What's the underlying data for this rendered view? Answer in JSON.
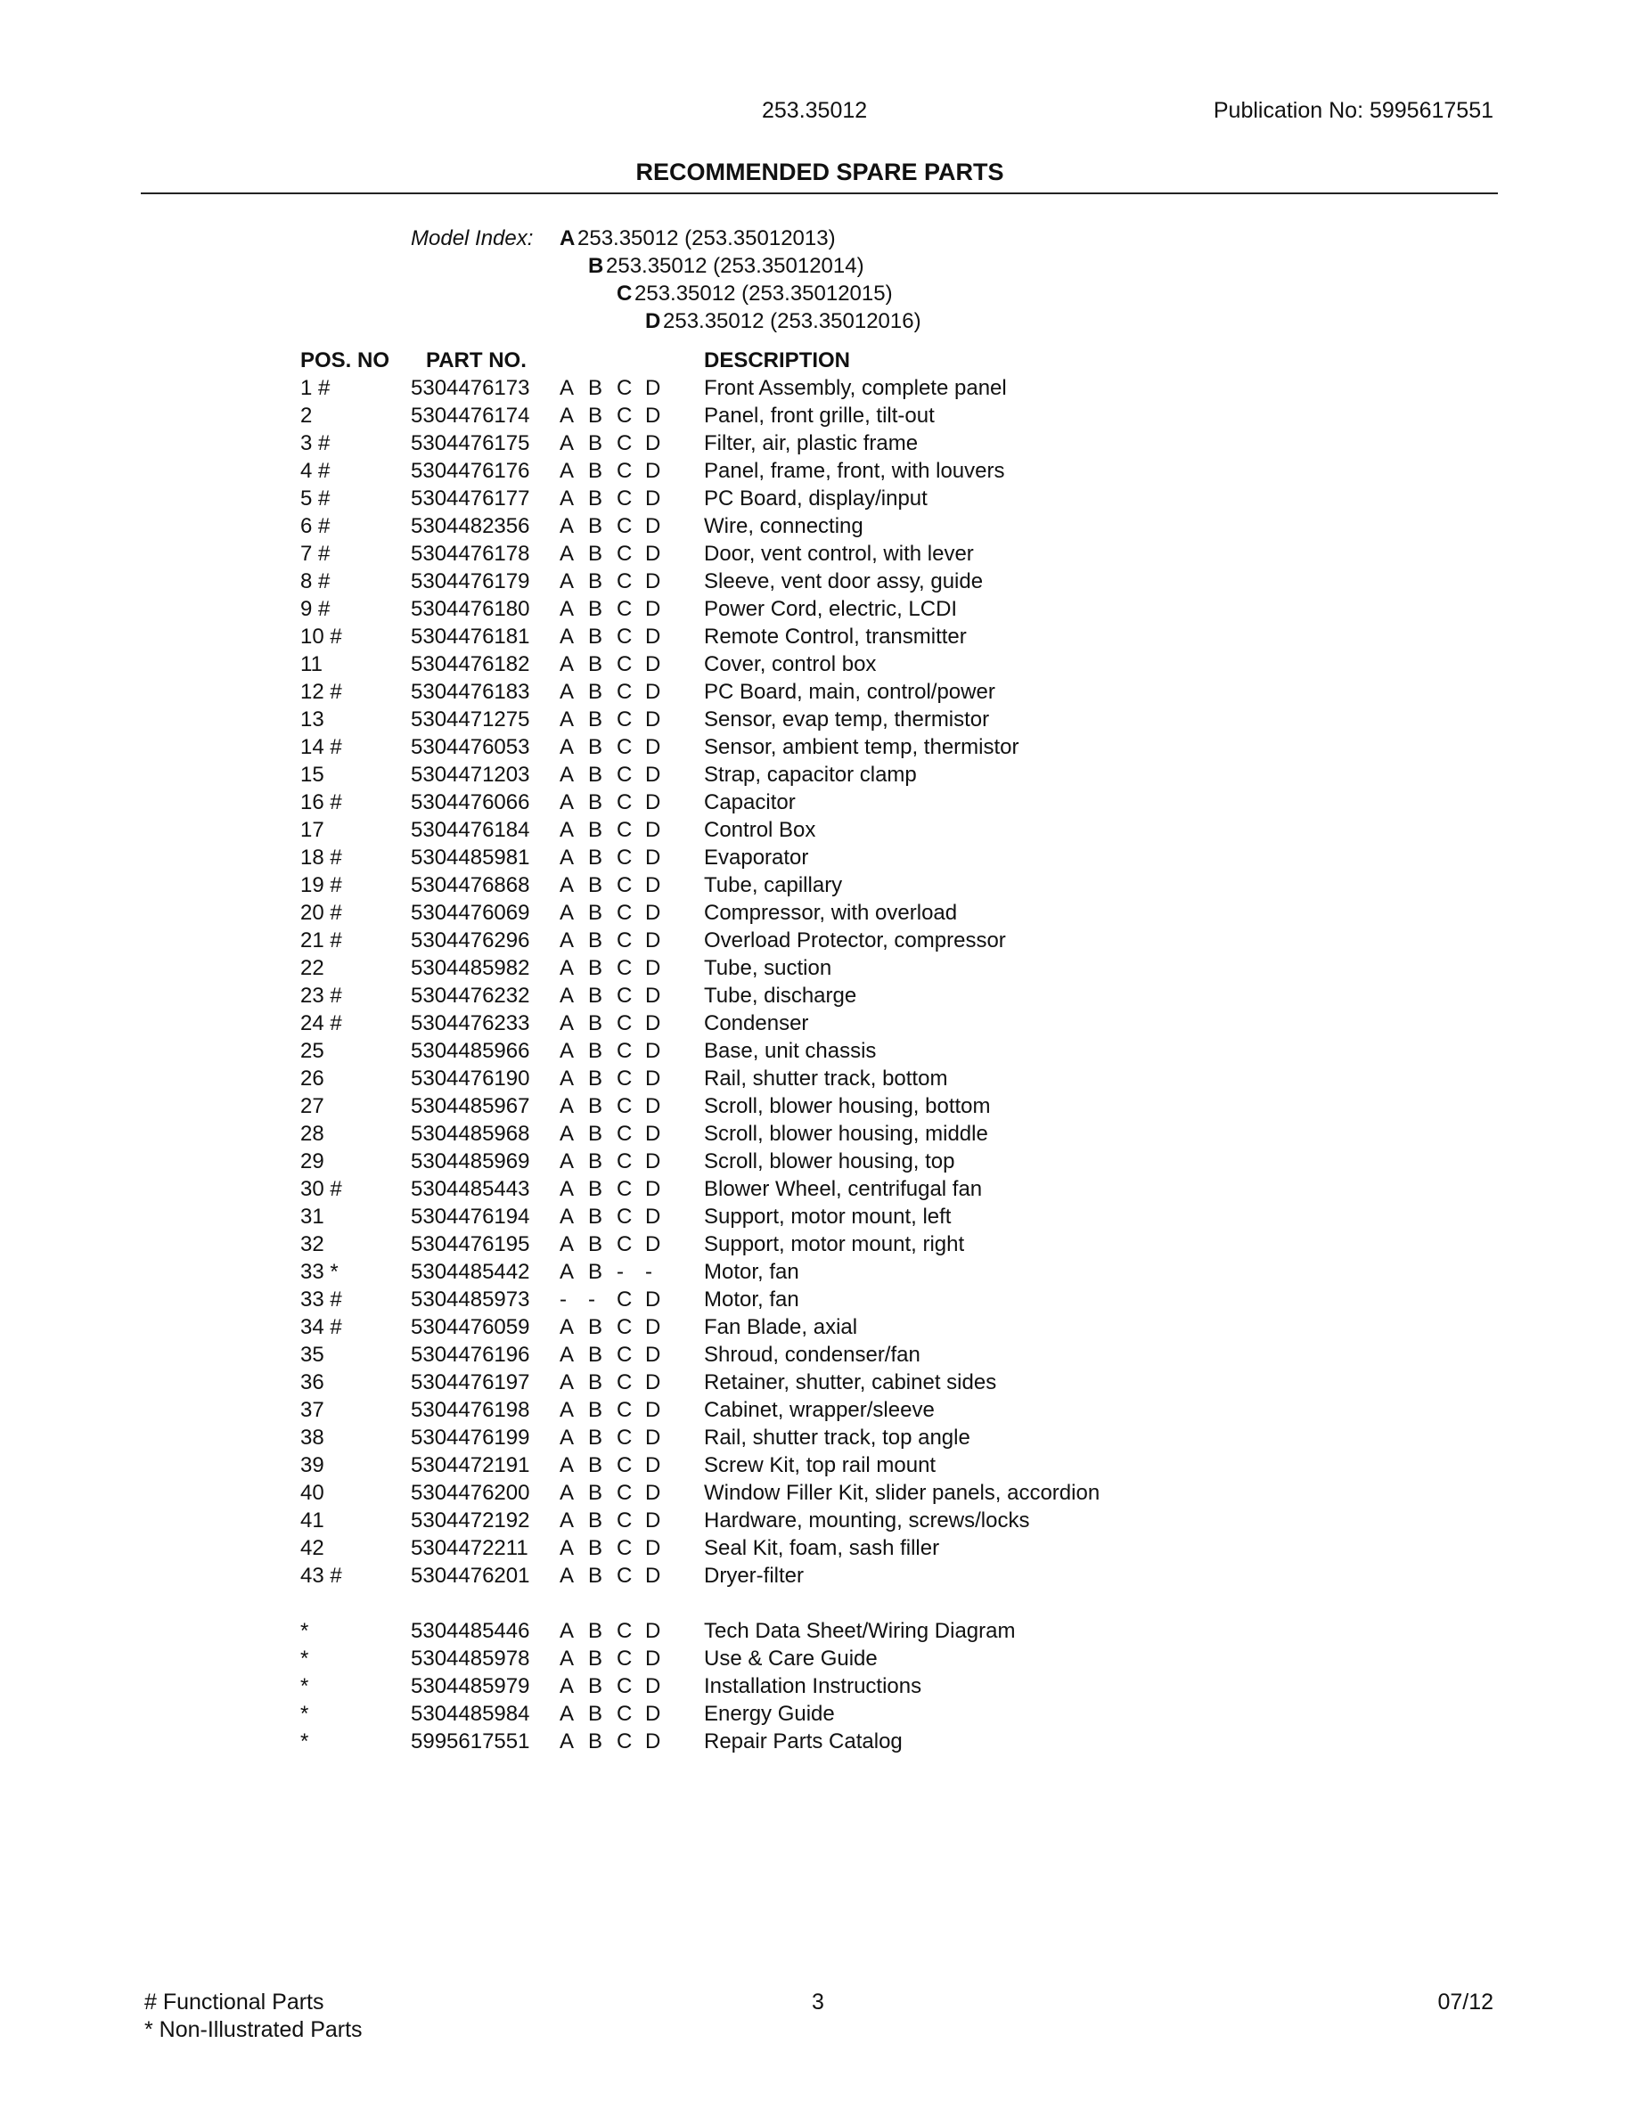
{
  "header": {
    "model": "253.35012",
    "publication": "Publication No:  5995617551"
  },
  "title": "RECOMMENDED SPARE PARTS",
  "model_index": {
    "label": "Model Index:",
    "models": [
      {
        "letter": "A",
        "text": "253.35012 (253.35012013)"
      },
      {
        "letter": "B",
        "text": "253.35012 (253.35012014)"
      },
      {
        "letter": "C",
        "text": "253.35012 (253.35012015)"
      },
      {
        "letter": "D",
        "text": "253.35012 (253.35012016)"
      }
    ]
  },
  "columns": {
    "pos": "POS. NO",
    "part": "PART NO.",
    "description": "DESCRIPTION"
  },
  "parts": [
    {
      "pos": "1  #",
      "part": "5304476173",
      "models": [
        "A",
        "B",
        "C",
        "D"
      ],
      "desc": "Front Assembly, complete panel"
    },
    {
      "pos": "2",
      "part": "5304476174",
      "models": [
        "A",
        "B",
        "C",
        "D"
      ],
      "desc": "Panel, front grille, tilt-out"
    },
    {
      "pos": "3  #",
      "part": "5304476175",
      "models": [
        "A",
        "B",
        "C",
        "D"
      ],
      "desc": "Filter, air, plastic frame"
    },
    {
      "pos": "4  #",
      "part": "5304476176",
      "models": [
        "A",
        "B",
        "C",
        "D"
      ],
      "desc": "Panel, frame, front, with louvers"
    },
    {
      "pos": "5  #",
      "part": "5304476177",
      "models": [
        "A",
        "B",
        "C",
        "D"
      ],
      "desc": "PC Board, display/input"
    },
    {
      "pos": "6  #",
      "part": "5304482356",
      "models": [
        "A",
        "B",
        "C",
        "D"
      ],
      "desc": "Wire, connecting"
    },
    {
      "pos": "7  #",
      "part": "5304476178",
      "models": [
        "A",
        "B",
        "C",
        "D"
      ],
      "desc": "Door, vent control, with lever"
    },
    {
      "pos": "8  #",
      "part": "5304476179",
      "models": [
        "A",
        "B",
        "C",
        "D"
      ],
      "desc": "Sleeve, vent door assy, guide"
    },
    {
      "pos": "9  #",
      "part": "5304476180",
      "models": [
        "A",
        "B",
        "C",
        "D"
      ],
      "desc": "Power Cord, electric, LCDI"
    },
    {
      "pos": "10 #",
      "part": "5304476181",
      "models": [
        "A",
        "B",
        "C",
        "D"
      ],
      "desc": "Remote Control, transmitter"
    },
    {
      "pos": "11",
      "part": "5304476182",
      "models": [
        "A",
        "B",
        "C",
        "D"
      ],
      "desc": "Cover, control box"
    },
    {
      "pos": "12 #",
      "part": "5304476183",
      "models": [
        "A",
        "B",
        "C",
        "D"
      ],
      "desc": "PC Board, main, control/power"
    },
    {
      "pos": "13",
      "part": "5304471275",
      "models": [
        "A",
        "B",
        "C",
        "D"
      ],
      "desc": "Sensor, evap temp, thermistor"
    },
    {
      "pos": "14 #",
      "part": "5304476053",
      "models": [
        "A",
        "B",
        "C",
        "D"
      ],
      "desc": "Sensor, ambient temp, thermistor"
    },
    {
      "pos": "15",
      "part": "5304471203",
      "models": [
        "A",
        "B",
        "C",
        "D"
      ],
      "desc": "Strap, capacitor clamp"
    },
    {
      "pos": "16 #",
      "part": "5304476066",
      "models": [
        "A",
        "B",
        "C",
        "D"
      ],
      "desc": "Capacitor"
    },
    {
      "pos": "17",
      "part": "5304476184",
      "models": [
        "A",
        "B",
        "C",
        "D"
      ],
      "desc": "Control Box"
    },
    {
      "pos": "18 #",
      "part": "5304485981",
      "models": [
        "A",
        "B",
        "C",
        "D"
      ],
      "desc": "Evaporator"
    },
    {
      "pos": "19 #",
      "part": "5304476868",
      "models": [
        "A",
        "B",
        "C",
        "D"
      ],
      "desc": "Tube, capillary"
    },
    {
      "pos": "20 #",
      "part": "5304476069",
      "models": [
        "A",
        "B",
        "C",
        "D"
      ],
      "desc": "Compressor, with overload"
    },
    {
      "pos": "21 #",
      "part": "5304476296",
      "models": [
        "A",
        "B",
        "C",
        "D"
      ],
      "desc": "Overload Protector, compressor"
    },
    {
      "pos": "22",
      "part": "5304485982",
      "models": [
        "A",
        "B",
        "C",
        "D"
      ],
      "desc": "Tube, suction"
    },
    {
      "pos": "23 #",
      "part": "5304476232",
      "models": [
        "A",
        "B",
        "C",
        "D"
      ],
      "desc": "Tube, discharge"
    },
    {
      "pos": "24 #",
      "part": "5304476233",
      "models": [
        "A",
        "B",
        "C",
        "D"
      ],
      "desc": "Condenser"
    },
    {
      "pos": "25",
      "part": "5304485966",
      "models": [
        "A",
        "B",
        "C",
        "D"
      ],
      "desc": "Base, unit chassis"
    },
    {
      "pos": "26",
      "part": "5304476190",
      "models": [
        "A",
        "B",
        "C",
        "D"
      ],
      "desc": "Rail, shutter track, bottom"
    },
    {
      "pos": "27",
      "part": "5304485967",
      "models": [
        "A",
        "B",
        "C",
        "D"
      ],
      "desc": "Scroll, blower housing, bottom"
    },
    {
      "pos": "28",
      "part": "5304485968",
      "models": [
        "A",
        "B",
        "C",
        "D"
      ],
      "desc": "Scroll, blower housing, middle"
    },
    {
      "pos": "29",
      "part": "5304485969",
      "models": [
        "A",
        "B",
        "C",
        "D"
      ],
      "desc": "Scroll, blower housing, top"
    },
    {
      "pos": "30 #",
      "part": "5304485443",
      "models": [
        "A",
        "B",
        "C",
        "D"
      ],
      "desc": "Blower Wheel, centrifugal fan"
    },
    {
      "pos": "31",
      "part": "5304476194",
      "models": [
        "A",
        "B",
        "C",
        "D"
      ],
      "desc": "Support, motor mount, left"
    },
    {
      "pos": "32",
      "part": "5304476195",
      "models": [
        "A",
        "B",
        "C",
        "D"
      ],
      "desc": "Support, motor mount, right"
    },
    {
      "pos": "33 *",
      "part": "5304485442",
      "models": [
        "A",
        "B",
        "-",
        "-"
      ],
      "desc": "Motor, fan"
    },
    {
      "pos": "33 #",
      "part": "5304485973",
      "models": [
        "-",
        "-",
        "C",
        "D"
      ],
      "desc": "Motor, fan"
    },
    {
      "pos": "34 #",
      "part": "5304476059",
      "models": [
        "A",
        "B",
        "C",
        "D"
      ],
      "desc": "Fan Blade, axial"
    },
    {
      "pos": "35",
      "part": "5304476196",
      "models": [
        "A",
        "B",
        "C",
        "D"
      ],
      "desc": "Shroud, condenser/fan"
    },
    {
      "pos": "36",
      "part": "5304476197",
      "models": [
        "A",
        "B",
        "C",
        "D"
      ],
      "desc": "Retainer, shutter, cabinet sides"
    },
    {
      "pos": "37",
      "part": "5304476198",
      "models": [
        "A",
        "B",
        "C",
        "D"
      ],
      "desc": "Cabinet, wrapper/sleeve"
    },
    {
      "pos": "38",
      "part": "5304476199",
      "models": [
        "A",
        "B",
        "C",
        "D"
      ],
      "desc": "Rail, shutter track, top angle"
    },
    {
      "pos": "39",
      "part": "5304472191",
      "models": [
        "A",
        "B",
        "C",
        "D"
      ],
      "desc": "Screw Kit, top rail mount"
    },
    {
      "pos": "40",
      "part": "5304476200",
      "models": [
        "A",
        "B",
        "C",
        "D"
      ],
      "desc": "Window Filler Kit, slider panels, accordion"
    },
    {
      "pos": "41",
      "part": "5304472192",
      "models": [
        "A",
        "B",
        "C",
        "D"
      ],
      "desc": "Hardware, mounting, screws/locks"
    },
    {
      "pos": "42",
      "part": "5304472211",
      "models": [
        "A",
        "B",
        "C",
        "D"
      ],
      "desc": "Seal Kit, foam, sash filler"
    },
    {
      "pos": "43 #",
      "part": "5304476201",
      "models": [
        "A",
        "B",
        "C",
        "D"
      ],
      "desc": "Dryer-filter"
    }
  ],
  "non_illustrated": [
    {
      "pos": "*",
      "part": "5304485446",
      "models": [
        "A",
        "B",
        "C",
        "D"
      ],
      "desc": "Tech Data Sheet/Wiring Diagram"
    },
    {
      "pos": "*",
      "part": "5304485978",
      "models": [
        "A",
        "B",
        "C",
        "D"
      ],
      "desc": "Use & Care Guide"
    },
    {
      "pos": "*",
      "part": "5304485979",
      "models": [
        "A",
        "B",
        "C",
        "D"
      ],
      "desc": "Installation Instructions"
    },
    {
      "pos": "*",
      "part": "5304485984",
      "models": [
        "A",
        "B",
        "C",
        "D"
      ],
      "desc": "Energy Guide"
    },
    {
      "pos": "*",
      "part": "5995617551",
      "models": [
        "A",
        "B",
        "C",
        "D"
      ],
      "desc": "Repair Parts Catalog"
    }
  ],
  "footer": {
    "legend_functional": "# Functional Parts",
    "legend_non_illustrated": "* Non-Illustrated Parts",
    "page": "3",
    "date": "07/12"
  }
}
